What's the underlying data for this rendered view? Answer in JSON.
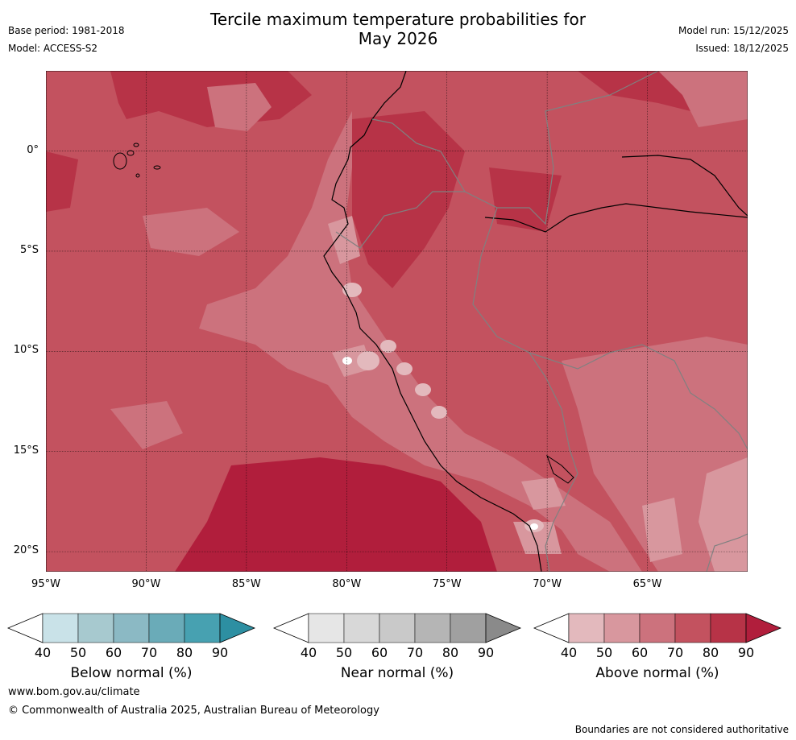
{
  "header": {
    "title_line1": "Tercile maximum temperature probabilities for",
    "title_line2": "May 2026",
    "base_period": "Base period: 1981-2018",
    "model": "Model: ACCESS-S2",
    "model_run": "Model run: 15/12/2025",
    "issued": "Issued: 18/12/2025"
  },
  "map": {
    "latitude_labels": [
      "0°",
      "5°S",
      "10°S",
      "15°S",
      "20°S"
    ],
    "longitude_labels": [
      "95°W",
      "90°W",
      "85°W",
      "80°W",
      "75°W",
      "70°W",
      "65°W"
    ],
    "extent": {
      "lon_min": -95,
      "lon_max": -60,
      "lat_max": 4,
      "lat_min": -21
    }
  },
  "colorbars": [
    {
      "title": "Below normal (%)",
      "ticks": [
        "40",
        "50",
        "60",
        "70",
        "80",
        "90"
      ],
      "colors": [
        "#ffffff",
        "#c9e2e8",
        "#a7c9cf",
        "#8bb9c4",
        "#6aabb8",
        "#47a1b1",
        "#2d8fa2"
      ]
    },
    {
      "title": "Near normal (%)",
      "ticks": [
        "40",
        "50",
        "60",
        "70",
        "80",
        "90"
      ],
      "colors": [
        "#ffffff",
        "#e6e6e6",
        "#d8d8d8",
        "#c9c9c9",
        "#b5b5b5",
        "#a0a0a0",
        "#8a8a8a"
      ]
    },
    {
      "title": "Above normal (%)",
      "ticks": [
        "40",
        "50",
        "60",
        "70",
        "80",
        "90"
      ],
      "colors": [
        "#ffffff",
        "#e3b9bd",
        "#d8979e",
        "#cc727d",
        "#c3525f",
        "#b73347",
        "#b11e3c"
      ]
    }
  ],
  "footer": {
    "url": "www.bom.gov.au/climate",
    "copyright": "© Commonwealth of Australia 2025, Australian Bureau of Meteorology",
    "note": "Boundaries are not considered authoritative"
  }
}
